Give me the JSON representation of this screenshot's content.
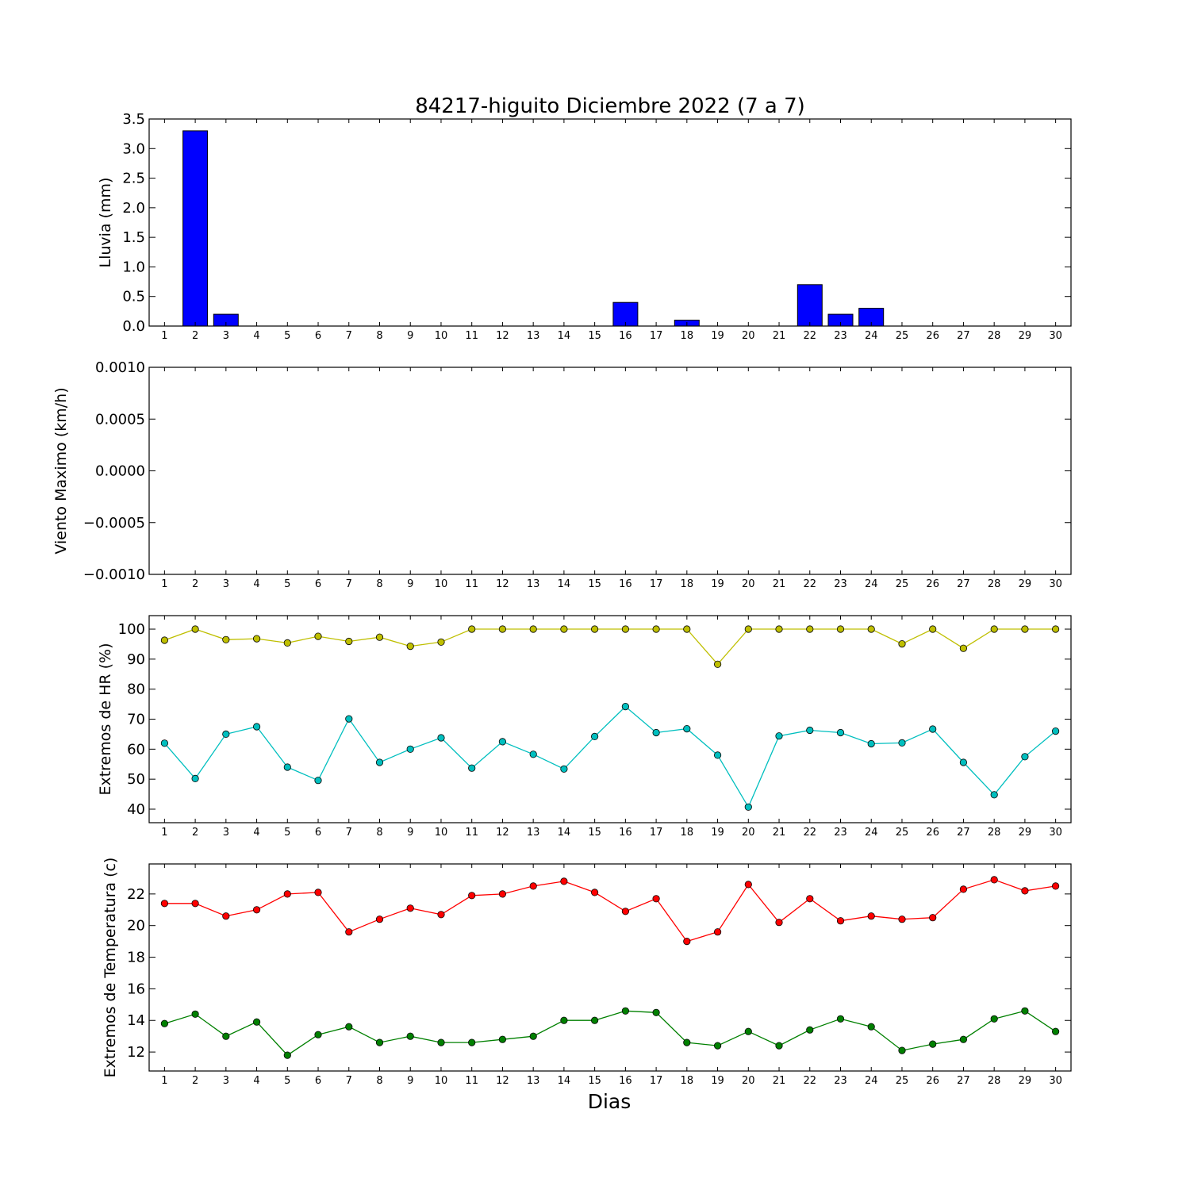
{
  "title": "84217-higuito Diciembre 2022  (7 a 7)",
  "xlabel": "Dias",
  "chart_data": [
    {
      "type": "bar",
      "ylabel": "Lluvia (mm)",
      "ylim": [
        0,
        3.5
      ],
      "yticks": [
        0.0,
        0.5,
        1.0,
        1.5,
        2.0,
        2.5,
        3.0,
        3.5
      ],
      "ytick_labels": [
        "0.0",
        "0.5",
        "1.0",
        "1.5",
        "2.0",
        "2.5",
        "3.0",
        "3.5"
      ],
      "x": [
        1,
        2,
        3,
        4,
        5,
        6,
        7,
        8,
        9,
        10,
        11,
        12,
        13,
        14,
        15,
        16,
        17,
        18,
        19,
        20,
        21,
        22,
        23,
        24,
        25,
        26,
        27,
        28,
        29,
        30
      ],
      "values": [
        0,
        3.3,
        0.2,
        0,
        0,
        0,
        0,
        0,
        0,
        0,
        0,
        0,
        0,
        0,
        0,
        0.4,
        0,
        0.1,
        0,
        0,
        0,
        0.7,
        0.2,
        0.3,
        0,
        0,
        0,
        0,
        0,
        0
      ],
      "color": "#0000ff"
    },
    {
      "type": "line",
      "ylabel": "Viento Maximo (km/h)",
      "ylim": [
        -0.001,
        0.001
      ],
      "yticks": [
        -0.001,
        -0.0005,
        0.0,
        0.0005,
        0.001
      ],
      "ytick_labels": [
        "−0.0010",
        "−0.0005",
        "0.0000",
        "0.0005",
        "0.0010"
      ],
      "x": [
        1,
        2,
        3,
        4,
        5,
        6,
        7,
        8,
        9,
        10,
        11,
        12,
        13,
        14,
        15,
        16,
        17,
        18,
        19,
        20,
        21,
        22,
        23,
        24,
        25,
        26,
        27,
        28,
        29,
        30
      ],
      "series": []
    },
    {
      "type": "line",
      "ylabel": "Extremos de HR (%)",
      "ylim": [
        35.5,
        104.5
      ],
      "yticks": [
        40,
        50,
        60,
        70,
        80,
        90,
        100
      ],
      "ytick_labels": [
        "40",
        "50",
        "60",
        "70",
        "80",
        "90",
        "100"
      ],
      "x": [
        1,
        2,
        3,
        4,
        5,
        6,
        7,
        8,
        9,
        10,
        11,
        12,
        13,
        14,
        15,
        16,
        17,
        18,
        19,
        20,
        21,
        22,
        23,
        24,
        25,
        26,
        27,
        28,
        29,
        30
      ],
      "series": [
        {
          "color": "#bfbf00",
          "values": [
            96.3,
            100,
            96.5,
            96.8,
            95.4,
            97.6,
            95.9,
            97.3,
            94.3,
            95.7,
            100,
            100,
            100,
            100,
            100,
            100,
            100,
            100,
            88.3,
            100,
            100,
            100,
            100,
            100,
            95.1,
            100,
            93.6,
            100,
            100,
            100
          ]
        },
        {
          "color": "#00bfbf",
          "values": [
            62,
            50.2,
            65,
            67.5,
            54,
            49.6,
            70.1,
            55.6,
            60,
            63.8,
            53.7,
            62.5,
            58.3,
            53.4,
            64.2,
            74.2,
            65.5,
            66.8,
            58,
            40.7,
            64.4,
            66.3,
            65.5,
            61.8,
            62.1,
            66.7,
            55.6,
            44.8,
            57.5,
            66
          ]
        }
      ]
    },
    {
      "type": "line",
      "ylabel": "Extremos de Temperatura (c)",
      "ylim": [
        10.8,
        23.9
      ],
      "yticks": [
        12,
        14,
        16,
        18,
        20,
        22
      ],
      "ytick_labels": [
        "12",
        "14",
        "16",
        "18",
        "20",
        "22"
      ],
      "x": [
        1,
        2,
        3,
        4,
        5,
        6,
        7,
        8,
        9,
        10,
        11,
        12,
        13,
        14,
        15,
        16,
        17,
        18,
        19,
        20,
        21,
        22,
        23,
        24,
        25,
        26,
        27,
        28,
        29,
        30
      ],
      "series": [
        {
          "color": "#ff0000",
          "values": [
            21.4,
            21.4,
            20.6,
            21,
            22,
            22.1,
            19.6,
            20.4,
            21.1,
            20.7,
            21.9,
            22,
            22.5,
            22.8,
            22.1,
            20.9,
            21.7,
            19,
            19.6,
            22.6,
            20.2,
            21.7,
            20.3,
            20.6,
            20.4,
            20.5,
            22.3,
            22.9,
            22.2,
            22.5
          ]
        },
        {
          "color": "#008000",
          "values": [
            13.8,
            14.4,
            13,
            13.9,
            11.8,
            13.1,
            13.6,
            12.6,
            13,
            12.6,
            12.6,
            12.8,
            13,
            14,
            14,
            14.6,
            14.5,
            12.6,
            12.4,
            13.3,
            12.4,
            13.4,
            14.1,
            13.6,
            12.1,
            12.5,
            12.8,
            14.1,
            14.6,
            13.3
          ]
        }
      ]
    }
  ]
}
